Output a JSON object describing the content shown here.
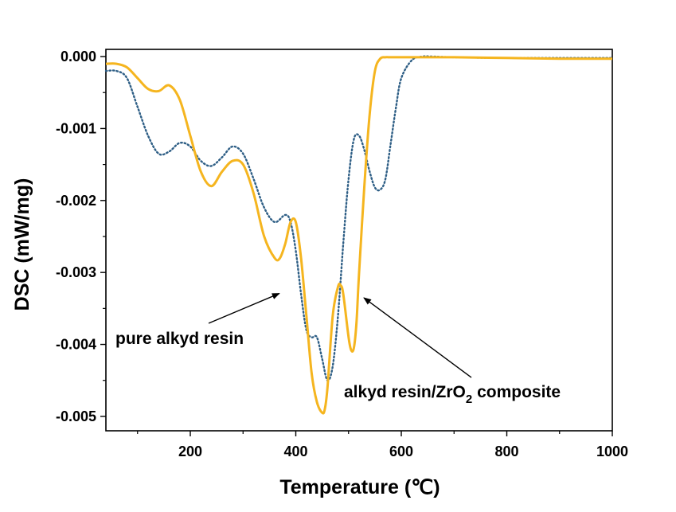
{
  "chart_data": {
    "type": "line",
    "xlabel": "Temperature (℃)",
    "ylabel": "DSC (mW/mg)",
    "xlim": [
      40,
      1000
    ],
    "ylim": [
      -0.0052,
      0.0001
    ],
    "x_ticks": [
      200,
      400,
      600,
      800,
      1000
    ],
    "x_tick_labels": [
      "200",
      "400",
      "600",
      "800",
      "1000"
    ],
    "y_ticks": [
      0.0,
      -0.001,
      -0.002,
      -0.003,
      -0.004,
      -0.005
    ],
    "y_tick_labels": [
      "0.000",
      "-0.001",
      "-0.002",
      "-0.003",
      "-0.004",
      "-0.005"
    ],
    "grid": false,
    "legend": "none",
    "series": [
      {
        "name": "pure alkyd resin",
        "style": "dotted",
        "color": "#2f5f86",
        "x": [
          40,
          60,
          80,
          100,
          120,
          140,
          160,
          180,
          200,
          220,
          240,
          260,
          280,
          300,
          320,
          340,
          360,
          380,
          390,
          400,
          410,
          420,
          430,
          440,
          450,
          460,
          470,
          480,
          490,
          500,
          510,
          520,
          530,
          540,
          550,
          560,
          570,
          580,
          590,
          600,
          620,
          640,
          660,
          700,
          800,
          900,
          1000
        ],
        "y": [
          -0.0002,
          -0.0002,
          -0.0003,
          -0.0007,
          -0.0011,
          -0.00135,
          -0.00132,
          -0.0012,
          -0.00125,
          -0.00145,
          -0.00152,
          -0.0014,
          -0.00125,
          -0.00135,
          -0.0017,
          -0.0021,
          -0.0023,
          -0.0022,
          -0.0023,
          -0.0027,
          -0.0033,
          -0.0038,
          -0.0039,
          -0.0039,
          -0.0042,
          -0.0045,
          -0.0043,
          -0.0036,
          -0.0026,
          -0.0017,
          -0.00115,
          -0.0011,
          -0.0013,
          -0.0016,
          -0.00182,
          -0.00185,
          -0.0017,
          -0.0012,
          -0.0007,
          -0.0003,
          -5e-05,
          0.0,
          0.0,
          -1e-05,
          -2e-05,
          -2e-05,
          -2e-05
        ]
      },
      {
        "name": "alkyd resin/ZrO2 composite",
        "style": "solid",
        "color": "#f5b51f",
        "x": [
          40,
          60,
          80,
          100,
          120,
          140,
          160,
          180,
          200,
          220,
          240,
          260,
          280,
          300,
          320,
          340,
          360,
          370,
          380,
          390,
          400,
          410,
          420,
          430,
          440,
          450,
          455,
          460,
          470,
          480,
          485,
          490,
          500,
          505,
          510,
          515,
          520,
          530,
          540,
          550,
          560,
          570,
          580,
          600,
          650,
          700,
          800,
          900,
          1000
        ],
        "y": [
          -0.0001,
          -0.0001,
          -0.00015,
          -0.0003,
          -0.00045,
          -0.00048,
          -0.0004,
          -0.0006,
          -0.0011,
          -0.0016,
          -0.0018,
          -0.0016,
          -0.00145,
          -0.0015,
          -0.0019,
          -0.0025,
          -0.0028,
          -0.0028,
          -0.0026,
          -0.0023,
          -0.0023,
          -0.0028,
          -0.0036,
          -0.0044,
          -0.0048,
          -0.00495,
          -0.0049,
          -0.0046,
          -0.0036,
          -0.0032,
          -0.00318,
          -0.0033,
          -0.0039,
          -0.00408,
          -0.00405,
          -0.0037,
          -0.003,
          -0.0018,
          -0.0008,
          -0.0002,
          -3e-05,
          -1e-05,
          -1e-05,
          -1e-05,
          -1e-05,
          -1e-05,
          -2e-05,
          -3e-05,
          -3e-05
        ]
      }
    ],
    "annotations": [
      {
        "text": "pure alkyd resin",
        "x": 163,
        "y": -0.0038,
        "arrow_to": [
          402,
          -0.00327
        ]
      },
      {
        "text": "alkyd resin/ZrO",
        "subscript": "2",
        "suffix": " composite",
        "x": 430,
        "y": -0.0046,
        "arrow_to": [
          520,
          -0.00327
        ]
      }
    ]
  }
}
